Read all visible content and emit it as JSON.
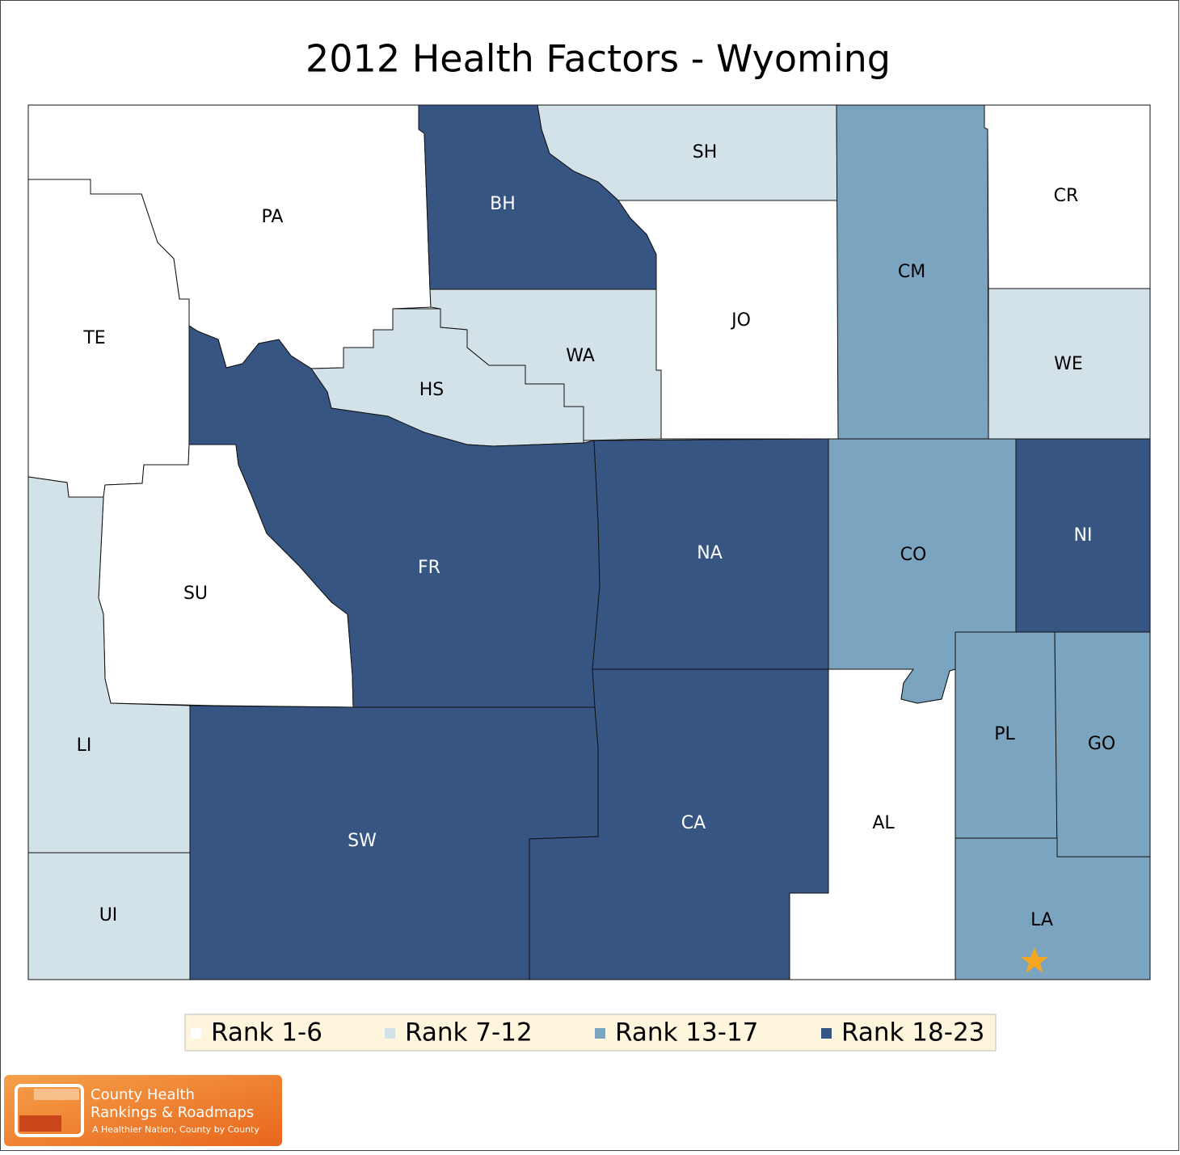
{
  "title": "2012 Health Factors - Wyoming",
  "legend": [
    {
      "label": "Rank 1-6",
      "color": "#ffffff"
    },
    {
      "label": "Rank 7-12",
      "color": "#d3e1e9"
    },
    {
      "label": "Rank 13-17",
      "color": "#7ba4c0"
    },
    {
      "label": "Rank 18-23",
      "color": "#375582"
    }
  ],
  "counties": [
    {
      "label": "PA",
      "class": 0
    },
    {
      "label": "TE",
      "class": 0
    },
    {
      "label": "SU",
      "class": 0
    },
    {
      "label": "JO",
      "class": 0
    },
    {
      "label": "CR",
      "class": 0
    },
    {
      "label": "AL",
      "class": 0
    },
    {
      "label": "SH",
      "class": 1
    },
    {
      "label": "WA",
      "class": 1
    },
    {
      "label": "HS",
      "class": 1
    },
    {
      "label": "WE",
      "class": 1
    },
    {
      "label": "LI",
      "class": 1
    },
    {
      "label": "UI",
      "class": 1
    },
    {
      "label": "CM",
      "class": 2
    },
    {
      "label": "CO",
      "class": 2
    },
    {
      "label": "PL",
      "class": 2
    },
    {
      "label": "GO",
      "class": 2
    },
    {
      "label": "LA",
      "class": 2
    },
    {
      "label": "BH",
      "class": 3
    },
    {
      "label": "FR",
      "class": 3
    },
    {
      "label": "NA",
      "class": 3
    },
    {
      "label": "SW",
      "class": 3
    },
    {
      "label": "CA",
      "class": 3
    },
    {
      "label": "NI",
      "class": 3
    }
  ],
  "logo": {
    "line1": "County Health",
    "line2": "Rankings & Roadmaps",
    "tagline": "A Healthier Nation, County by County"
  }
}
